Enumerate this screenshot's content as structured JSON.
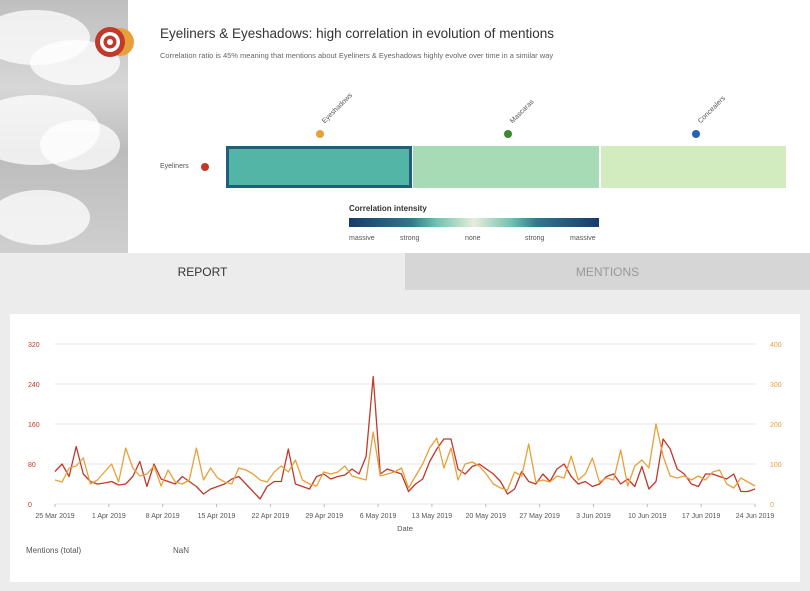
{
  "header": {
    "title": "Eyeliners & Eyeshadows: high correlation in evolution of mentions",
    "subtitle": "Correlation ratio is 45% meaning that mentions about Eyeliners & Eyeshadows highly evolve over time in a similar way",
    "logo_icon": "target-icon"
  },
  "matrix": {
    "row": {
      "label": "Eyeliners",
      "dot_color": "#c0392b"
    },
    "columns": [
      {
        "label": "Eyeshadows",
        "dot_color": "#e8a03a",
        "cell_color": "#52b5a6",
        "selected": true
      },
      {
        "label": "Mascaras",
        "dot_color": "#3a8a2e",
        "cell_color": "#a7dbb5",
        "selected": false
      },
      {
        "label": "Concealers",
        "dot_color": "#2563b8",
        "cell_color": "#d3ecbf",
        "selected": false
      }
    ]
  },
  "legend": {
    "title": "Correlation intensity",
    "ticks": [
      "massive",
      "strong",
      "none",
      "strong",
      "massive"
    ]
  },
  "tabs": {
    "report": "REPORT",
    "mentions": "MENTIONS"
  },
  "chart_data": {
    "type": "line",
    "xlabel": "Date",
    "x_ticks": [
      "25 Mar 2019",
      "1 Apr 2019",
      "8 Apr 2019",
      "15 Apr 2019",
      "22 Apr 2019",
      "29 Apr 2019",
      "6 May 2019",
      "13 May 2019",
      "20 May 2019",
      "27 May 2019",
      "3 Jun 2019",
      "10 Jun 2019",
      "17 Jun 2019",
      "24 Jun 2019"
    ],
    "y_left": {
      "ticks": [
        "0",
        "80",
        "160",
        "240",
        "320"
      ],
      "range": [
        0,
        320
      ],
      "color": "#c0392b"
    },
    "y_right": {
      "ticks": [
        "0",
        "100",
        "200",
        "300",
        "400"
      ],
      "range": [
        0,
        400
      ],
      "color": "#e8a03a"
    },
    "grid": "horizontal",
    "series": [
      {
        "axis": "left",
        "color": "#c0392b",
        "values": [
          65,
          80,
          55,
          115,
          60,
          45,
          40,
          42,
          45,
          38,
          40,
          55,
          85,
          35,
          80,
          50,
          45,
          40,
          55,
          45,
          35,
          20,
          30,
          35,
          40,
          50,
          55,
          40,
          25,
          10,
          35,
          45,
          45,
          110,
          40,
          35,
          30,
          55,
          60,
          50,
          55,
          58,
          70,
          60,
          95,
          255,
          60,
          70,
          65,
          60,
          25,
          40,
          50,
          85,
          110,
          130,
          130,
          70,
          60,
          75,
          80,
          70,
          60,
          45,
          20,
          30,
          65,
          45,
          40,
          60,
          45,
          70,
          80,
          55,
          40,
          45,
          35,
          40,
          55,
          60,
          40,
          50,
          35,
          75,
          30,
          45,
          130,
          110,
          70,
          60,
          40,
          35,
          60,
          60,
          55,
          50,
          60,
          25,
          25,
          30
        ]
      },
      {
        "axis": "right",
        "color": "#e8a03a",
        "values": [
          60,
          55,
          90,
          95,
          115,
          50,
          60,
          80,
          100,
          55,
          140,
          90,
          70,
          75,
          95,
          45,
          85,
          55,
          50,
          60,
          140,
          60,
          90,
          65,
          55,
          50,
          90,
          85,
          75,
          60,
          55,
          80,
          95,
          80,
          110,
          60,
          50,
          45,
          80,
          75,
          80,
          95,
          70,
          65,
          60,
          180,
          70,
          75,
          80,
          90,
          40,
          70,
          100,
          140,
          165,
          90,
          140,
          60,
          100,
          105,
          95,
          75,
          50,
          40,
          35,
          80,
          70,
          150,
          55,
          60,
          55,
          70,
          65,
          120,
          60,
          75,
          115,
          55,
          65,
          60,
          135,
          45,
          95,
          110,
          90,
          200,
          120,
          70,
          65,
          70,
          60,
          70,
          60,
          80,
          85,
          50,
          40,
          65,
          55,
          45
        ]
      }
    ]
  },
  "footer": {
    "label": "Mentions (total)",
    "value": "NaN"
  }
}
